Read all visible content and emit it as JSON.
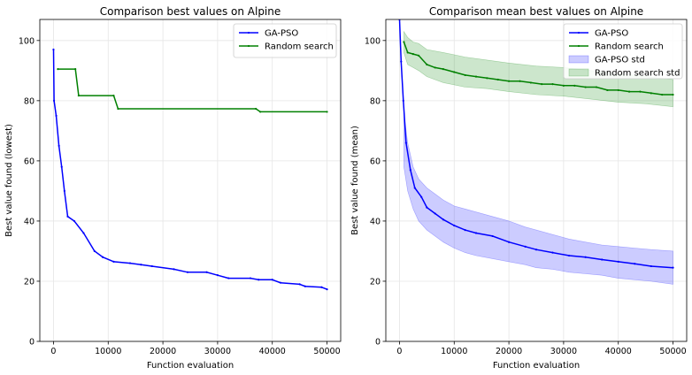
{
  "chart_data": [
    {
      "type": "line",
      "title": "Comparison best values on Alpine",
      "xlabel": "Function evaluation",
      "ylabel": "Best value found (lowest)",
      "xlim": [
        -2500,
        52500
      ],
      "ylim": [
        0,
        107
      ],
      "xticks": [
        0,
        10000,
        20000,
        30000,
        40000,
        50000
      ],
      "xtick_labels": [
        "0",
        "10000",
        "20000",
        "30000",
        "40000",
        "50000"
      ],
      "yticks": [
        0,
        20,
        40,
        60,
        80,
        100
      ],
      "ytick_labels": [
        "0",
        "20",
        "40",
        "60",
        "80",
        "100"
      ],
      "grid": true,
      "legend_position": "top-right",
      "series": [
        {
          "name": "GA-PSO",
          "color": "#0000ff",
          "x": [
            0,
            100,
            500,
            1000,
            1500,
            2000,
            2600,
            3800,
            5500,
            7500,
            9000,
            11000,
            14000,
            16000,
            18000,
            22000,
            24500,
            28000,
            30000,
            32000,
            36000,
            37500,
            40000,
            41500,
            45000,
            46000,
            49000,
            50000
          ],
          "y": [
            97,
            80,
            75,
            65,
            58,
            50,
            41.5,
            40,
            36,
            30,
            28,
            26.5,
            26,
            25.5,
            25,
            24,
            23,
            23,
            22,
            21,
            21,
            20.5,
            20.5,
            19.5,
            19,
            18.3,
            18,
            17.3
          ]
        },
        {
          "name": "Random search",
          "color": "#008000",
          "x": [
            800,
            4000,
            4600,
            11000,
            11800,
            37000,
            37800,
            50000
          ],
          "y": [
            90.5,
            90.5,
            81.7,
            81.7,
            77.3,
            77.3,
            76.3,
            76.3
          ]
        }
      ]
    },
    {
      "type": "area",
      "title": "Comparison mean best values on Alpine",
      "xlabel": "Function evaluation",
      "ylabel": "Best value found (mean)",
      "xlim": [
        -2500,
        52500
      ],
      "ylim": [
        0,
        107
      ],
      "xticks": [
        0,
        10000,
        20000,
        30000,
        40000,
        50000
      ],
      "xtick_labels": [
        "0",
        "10000",
        "20000",
        "30000",
        "40000",
        "50000"
      ],
      "yticks": [
        0,
        20,
        40,
        60,
        80,
        100
      ],
      "ytick_labels": [
        "0",
        "20",
        "40",
        "60",
        "80",
        "100"
      ],
      "grid": true,
      "legend_position": "top-right",
      "series": [
        {
          "name": "GA-PSO",
          "color": "#0000ff",
          "x": [
            0,
            300,
            700,
            1200,
            2000,
            2800,
            4000,
            5000,
            6500,
            8000,
            10000,
            12000,
            14000,
            17000,
            20000,
            23000,
            25000,
            28000,
            31000,
            34000,
            37000,
            40000,
            43000,
            46000,
            50000
          ],
          "y": [
            107,
            93,
            80,
            66,
            57,
            51,
            48,
            44.5,
            42.5,
            40.5,
            38.5,
            37,
            36,
            35,
            33,
            31.5,
            30.5,
            29.5,
            28.5,
            28,
            27.2,
            26.5,
            25.8,
            25,
            24.5
          ]
        },
        {
          "name": "Random search",
          "color": "#008000",
          "x": [
            800,
            1500,
            2500,
            3500,
            5000,
            6500,
            8000,
            10000,
            12000,
            14000,
            16000,
            18000,
            20000,
            22000,
            24000,
            26000,
            28000,
            30000,
            32000,
            34000,
            36000,
            38000,
            40000,
            42000,
            44000,
            46000,
            48000,
            50000
          ],
          "y": [
            99.5,
            96,
            95.5,
            95,
            92,
            91,
            90.5,
            89.5,
            88.5,
            88,
            87.5,
            87,
            86.5,
            86.5,
            86,
            85.5,
            85.5,
            85,
            85,
            84.5,
            84.5,
            83.5,
            83.5,
            83,
            83,
            82.5,
            82,
            82
          ]
        },
        {
          "name": "GA-PSO std",
          "color": "#0000ff",
          "x": [
            800,
            1500,
            2500,
            3500,
            5000,
            6500,
            8000,
            10000,
            12000,
            14000,
            17000,
            20000,
            23000,
            25000,
            28000,
            31000,
            34000,
            37000,
            40000,
            43000,
            46000,
            50000
          ],
          "upper": [
            76,
            66,
            58,
            54,
            51,
            49,
            47,
            45,
            44,
            43,
            41.5,
            40,
            38,
            37,
            35.5,
            34,
            33,
            32,
            31.5,
            31,
            30.5,
            30
          ],
          "lower": [
            58,
            50,
            44,
            40,
            37,
            35,
            33,
            31,
            29.5,
            28.5,
            27.5,
            26.5,
            25.5,
            24.5,
            24,
            23,
            22.5,
            22,
            21,
            20.5,
            20,
            19
          ]
        },
        {
          "name": "Random search std",
          "color": "#008000",
          "x": [
            800,
            1500,
            2500,
            3500,
            5000,
            8000,
            12000,
            16000,
            20000,
            25000,
            30000,
            35000,
            40000,
            45000,
            50000
          ],
          "upper": [
            103,
            101,
            99.5,
            99,
            97,
            96,
            94.5,
            93.5,
            92.5,
            91.5,
            91,
            90,
            89,
            88,
            87
          ],
          "lower": [
            96,
            92,
            91,
            90,
            88,
            86,
            84.5,
            84,
            83,
            82,
            81.5,
            80.5,
            79.5,
            79,
            78
          ]
        }
      ]
    }
  ]
}
